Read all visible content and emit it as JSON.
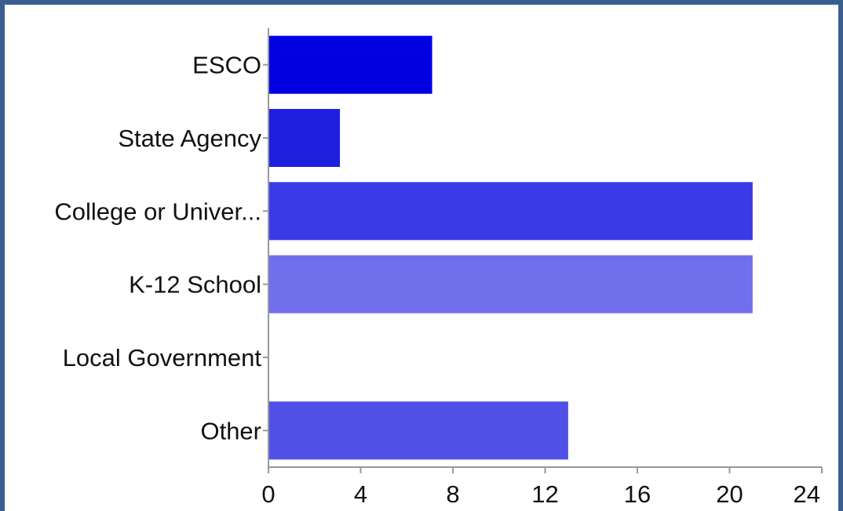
{
  "chart_data": {
    "type": "bar",
    "orientation": "horizontal",
    "categories": [
      "ESCO",
      "State Agency",
      "College or Univer...",
      "K-12 School",
      "Local Government",
      "Other"
    ],
    "values": [
      7.1,
      3.1,
      21,
      21,
      0,
      13
    ],
    "bar_colors": [
      "#0000e0",
      "#1f1fe0",
      "#3a3ae6",
      "#7070ec",
      "#5555e8",
      "#5050e6"
    ],
    "title": "",
    "xlabel": "",
    "ylabel": "",
    "xlim": [
      0,
      24
    ],
    "xticks": [
      0,
      4,
      8,
      12,
      16,
      20,
      24
    ],
    "grid": false,
    "legend": "none"
  }
}
